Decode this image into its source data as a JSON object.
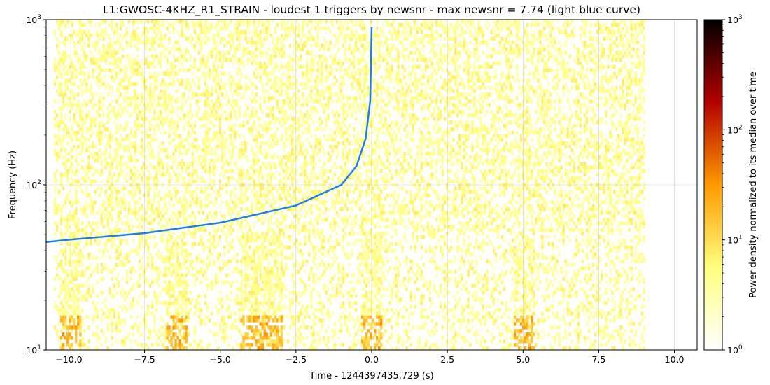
{
  "chart_data": {
    "type": "heatmap",
    "title": "L1:GWOSC-4KHZ_R1_STRAIN - loudest 1 triggers by newsnr - max newsnr = 7.74 (light blue curve)",
    "xlabel": "Time - 1244397435.729 (s)",
    "ylabel": "Frequency (Hz)",
    "xlim": [
      -10.75,
      10.75
    ],
    "ylim": [
      10,
      1000
    ],
    "yscale": "log",
    "x_ticks": [
      -10.0,
      -7.5,
      -5.0,
      -2.5,
      0.0,
      2.5,
      5.0,
      7.5,
      10.0
    ],
    "x_tick_labels": [
      "−10.0",
      "−7.5",
      "−5.0",
      "−2.5",
      "0.0",
      "2.5",
      "5.0",
      "7.5",
      "10.0"
    ],
    "y_ticks": [
      10,
      100,
      1000
    ],
    "y_tick_labels": [
      {
        "base": "10",
        "exp": "1"
      },
      {
        "base": "10",
        "exp": "2"
      },
      {
        "base": "10",
        "exp": "3"
      }
    ],
    "grid": true,
    "spectrogram": {
      "time_range": [
        -10.5,
        9.0
      ],
      "freq_range": [
        10,
        1000
      ],
      "colormap": "afmhot_r"
    },
    "trigger_curve": {
      "color": "#1f7fe6",
      "points": [
        {
          "x": -10.75,
          "y": 45
        },
        {
          "x": -10.0,
          "y": 46.5
        },
        {
          "x": -7.5,
          "y": 51
        },
        {
          "x": -5.0,
          "y": 59
        },
        {
          "x": -2.5,
          "y": 75
        },
        {
          "x": -1.0,
          "y": 100
        },
        {
          "x": -0.5,
          "y": 130
        },
        {
          "x": -0.2,
          "y": 190
        },
        {
          "x": -0.05,
          "y": 320
        },
        {
          "x": 0.0,
          "y": 900
        }
      ]
    },
    "colorbar": {
      "label": "Power density normalized to its median over time",
      "scale": "log",
      "range": [
        1,
        1000
      ],
      "tick_labels": [
        {
          "base": "10",
          "exp": "0"
        },
        {
          "base": "10",
          "exp": "1"
        },
        {
          "base": "10",
          "exp": "2"
        },
        {
          "base": "10",
          "exp": "3"
        }
      ],
      "colors": [
        "#ffffff",
        "#ffff80",
        "#ff9900",
        "#b30000",
        "#000000"
      ]
    }
  }
}
